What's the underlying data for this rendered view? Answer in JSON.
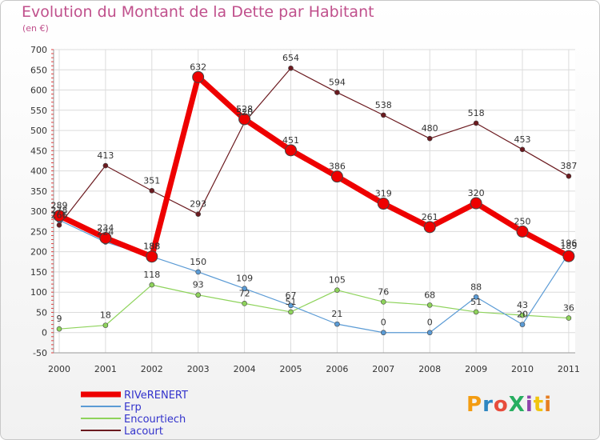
{
  "header": {
    "title": "Evolution du Montant de la Dette par Habitant",
    "unit": "(en €)"
  },
  "logo": {
    "text": "ProXiti",
    "colors": [
      "#f39c12",
      "#2e86c1",
      "#e74c3c",
      "#27ae60",
      "#8e44ad",
      "#f1c40f",
      "#e67e22"
    ]
  },
  "chart_data": {
    "type": "line",
    "x": [
      "2000",
      "2001",
      "2002",
      "2003",
      "2004",
      "2005",
      "2006",
      "2007",
      "2008",
      "2009",
      "2010",
      "2011"
    ],
    "ylim": [
      -50,
      700
    ],
    "yticks": [
      -50,
      0,
      50,
      100,
      150,
      200,
      250,
      300,
      350,
      400,
      450,
      500,
      550,
      600,
      650,
      700
    ],
    "grid": true,
    "legend": "bottom-left",
    "series": [
      {
        "name": "Lacourt",
        "color": "#6b1a1f",
        "width": 1.2,
        "marker": 3,
        "values": [
          266,
          413,
          351,
          293,
          520,
          654,
          594,
          538,
          480,
          518,
          453,
          387
        ]
      },
      {
        "name": "Encourtiech",
        "color": "#8ed35b",
        "width": 1.2,
        "marker": 3,
        "values": [
          9,
          18,
          118,
          93,
          72,
          51,
          105,
          76,
          68,
          51,
          43,
          36
        ]
      },
      {
        "name": "Erp",
        "color": "#5b9bd5",
        "width": 1.2,
        "marker": 3,
        "values": [
          278,
          224,
          188,
          150,
          109,
          67,
          21,
          0,
          0,
          88,
          20,
          196
        ]
      },
      {
        "name": "RIVeRENERT",
        "color": "#ee0000",
        "width": 7,
        "marker": 7,
        "values": [
          289,
          234,
          188,
          632,
          528,
          451,
          386,
          319,
          261,
          320,
          250,
          189
        ]
      }
    ],
    "point_labels": [
      {
        "series": "Lacourt",
        "labels": [
          "266",
          "413",
          "351",
          "293",
          "520",
          "654",
          "594",
          "538",
          "480",
          "518",
          "453",
          "387"
        ]
      },
      {
        "series": "Encourtiech",
        "labels": [
          "9",
          "18",
          "118",
          "93",
          "72",
          "51",
          "105",
          "76",
          "68",
          "51",
          "43",
          "36"
        ]
      },
      {
        "series": "Erp",
        "labels": [
          "278",
          "224",
          "188",
          "150",
          "109",
          "67",
          "21",
          "0",
          "0",
          "88",
          "20",
          "196"
        ]
      },
      {
        "series": "RIVeRENERT",
        "labels": [
          "289",
          "234",
          "188",
          "632",
          "528",
          "451",
          "386",
          "319",
          "261",
          "320",
          "250",
          "189"
        ]
      }
    ],
    "legend_order": [
      "RIVeRENERT",
      "Erp",
      "Encourtiech",
      "Lacourt"
    ]
  }
}
